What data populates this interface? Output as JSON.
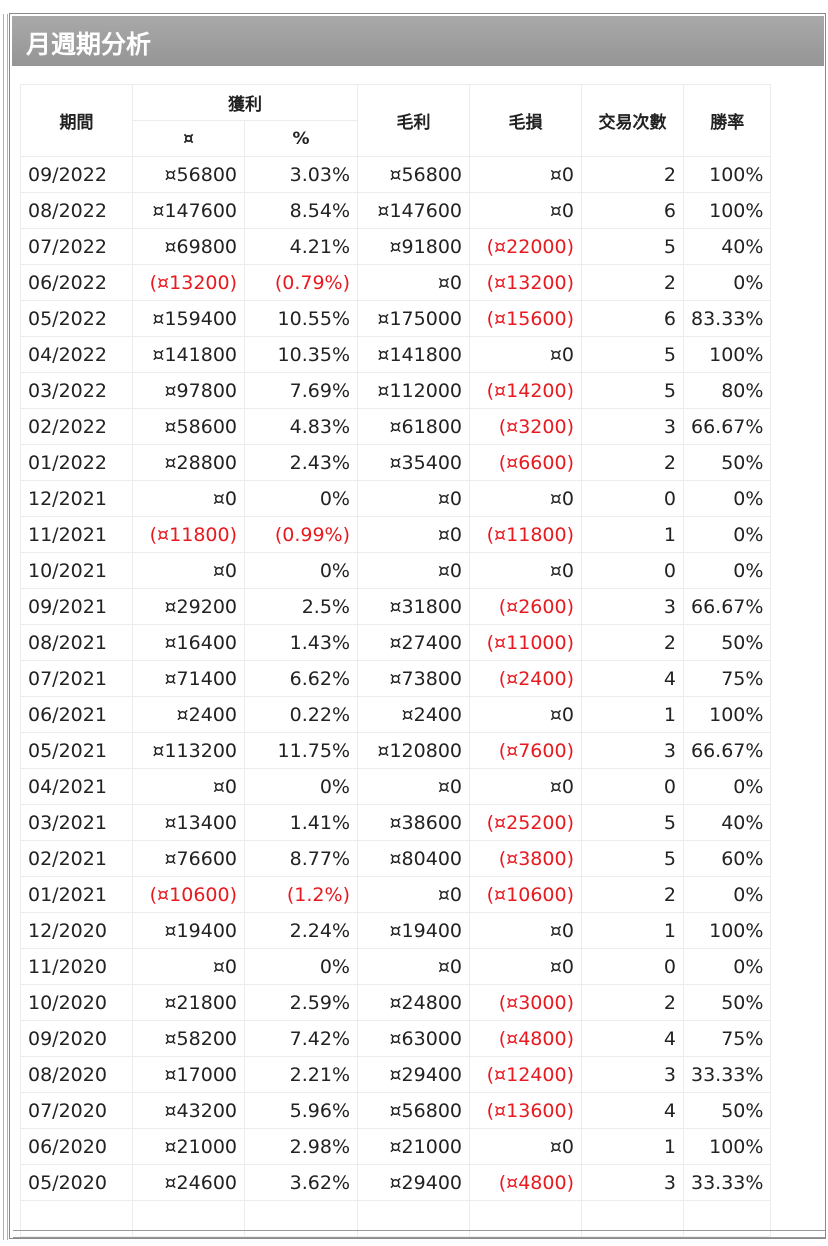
{
  "title": "月週期分析",
  "headers": {
    "period": "期間",
    "profit_group": "獲利",
    "profit_amount": "¤",
    "profit_pct": "%",
    "gross_profit": "毛利",
    "gross_loss": "毛損",
    "trades": "交易次數",
    "win_rate": "勝率"
  },
  "rows": [
    {
      "period": "09/2022",
      "profit": "¤56800",
      "pct": "3.03%",
      "gross": "¤56800",
      "loss": "¤0",
      "trades": "2",
      "win": "100%",
      "neg": false
    },
    {
      "period": "08/2022",
      "profit": "¤147600",
      "pct": "8.54%",
      "gross": "¤147600",
      "loss": "¤0",
      "trades": "6",
      "win": "100%",
      "neg": false
    },
    {
      "period": "07/2022",
      "profit": "¤69800",
      "pct": "4.21%",
      "gross": "¤91800",
      "loss": "(¤22000)",
      "trades": "5",
      "win": "40%",
      "neg": false
    },
    {
      "period": "06/2022",
      "profit": "(¤13200)",
      "pct": "(0.79%)",
      "gross": "¤0",
      "loss": "(¤13200)",
      "trades": "2",
      "win": "0%",
      "neg": true
    },
    {
      "period": "05/2022",
      "profit": "¤159400",
      "pct": "10.55%",
      "gross": "¤175000",
      "loss": "(¤15600)",
      "trades": "6",
      "win": "83.33%",
      "neg": false
    },
    {
      "period": "04/2022",
      "profit": "¤141800",
      "pct": "10.35%",
      "gross": "¤141800",
      "loss": "¤0",
      "trades": "5",
      "win": "100%",
      "neg": false
    },
    {
      "period": "03/2022",
      "profit": "¤97800",
      "pct": "7.69%",
      "gross": "¤112000",
      "loss": "(¤14200)",
      "trades": "5",
      "win": "80%",
      "neg": false
    },
    {
      "period": "02/2022",
      "profit": "¤58600",
      "pct": "4.83%",
      "gross": "¤61800",
      "loss": "(¤3200)",
      "trades": "3",
      "win": "66.67%",
      "neg": false
    },
    {
      "period": "01/2022",
      "profit": "¤28800",
      "pct": "2.43%",
      "gross": "¤35400",
      "loss": "(¤6600)",
      "trades": "2",
      "win": "50%",
      "neg": false
    },
    {
      "period": "12/2021",
      "profit": "¤0",
      "pct": "0%",
      "gross": "¤0",
      "loss": "¤0",
      "trades": "0",
      "win": "0%",
      "neg": false
    },
    {
      "period": "11/2021",
      "profit": "(¤11800)",
      "pct": "(0.99%)",
      "gross": "¤0",
      "loss": "(¤11800)",
      "trades": "1",
      "win": "0%",
      "neg": true
    },
    {
      "period": "10/2021",
      "profit": "¤0",
      "pct": "0%",
      "gross": "¤0",
      "loss": "¤0",
      "trades": "0",
      "win": "0%",
      "neg": false
    },
    {
      "period": "09/2021",
      "profit": "¤29200",
      "pct": "2.5%",
      "gross": "¤31800",
      "loss": "(¤2600)",
      "trades": "3",
      "win": "66.67%",
      "neg": false
    },
    {
      "period": "08/2021",
      "profit": "¤16400",
      "pct": "1.43%",
      "gross": "¤27400",
      "loss": "(¤11000)",
      "trades": "2",
      "win": "50%",
      "neg": false
    },
    {
      "period": "07/2021",
      "profit": "¤71400",
      "pct": "6.62%",
      "gross": "¤73800",
      "loss": "(¤2400)",
      "trades": "4",
      "win": "75%",
      "neg": false
    },
    {
      "period": "06/2021",
      "profit": "¤2400",
      "pct": "0.22%",
      "gross": "¤2400",
      "loss": "¤0",
      "trades": "1",
      "win": "100%",
      "neg": false
    },
    {
      "period": "05/2021",
      "profit": "¤113200",
      "pct": "11.75%",
      "gross": "¤120800",
      "loss": "(¤7600)",
      "trades": "3",
      "win": "66.67%",
      "neg": false
    },
    {
      "period": "04/2021",
      "profit": "¤0",
      "pct": "0%",
      "gross": "¤0",
      "loss": "¤0",
      "trades": "0",
      "win": "0%",
      "neg": false
    },
    {
      "period": "03/2021",
      "profit": "¤13400",
      "pct": "1.41%",
      "gross": "¤38600",
      "loss": "(¤25200)",
      "trades": "5",
      "win": "40%",
      "neg": false
    },
    {
      "period": "02/2021",
      "profit": "¤76600",
      "pct": "8.77%",
      "gross": "¤80400",
      "loss": "(¤3800)",
      "trades": "5",
      "win": "60%",
      "neg": false
    },
    {
      "period": "01/2021",
      "profit": "(¤10600)",
      "pct": "(1.2%)",
      "gross": "¤0",
      "loss": "(¤10600)",
      "trades": "2",
      "win": "0%",
      "neg": true
    },
    {
      "period": "12/2020",
      "profit": "¤19400",
      "pct": "2.24%",
      "gross": "¤19400",
      "loss": "¤0",
      "trades": "1",
      "win": "100%",
      "neg": false
    },
    {
      "period": "11/2020",
      "profit": "¤0",
      "pct": "0%",
      "gross": "¤0",
      "loss": "¤0",
      "trades": "0",
      "win": "0%",
      "neg": false
    },
    {
      "period": "10/2020",
      "profit": "¤21800",
      "pct": "2.59%",
      "gross": "¤24800",
      "loss": "(¤3000)",
      "trades": "2",
      "win": "50%",
      "neg": false
    },
    {
      "period": "09/2020",
      "profit": "¤58200",
      "pct": "7.42%",
      "gross": "¤63000",
      "loss": "(¤4800)",
      "trades": "4",
      "win": "75%",
      "neg": false
    },
    {
      "period": "08/2020",
      "profit": "¤17000",
      "pct": "2.21%",
      "gross": "¤29400",
      "loss": "(¤12400)",
      "trades": "3",
      "win": "33.33%",
      "neg": false
    },
    {
      "period": "07/2020",
      "profit": "¤43200",
      "pct": "5.96%",
      "gross": "¤56800",
      "loss": "(¤13600)",
      "trades": "4",
      "win": "50%",
      "neg": false
    },
    {
      "period": "06/2020",
      "profit": "¤21000",
      "pct": "2.98%",
      "gross": "¤21000",
      "loss": "¤0",
      "trades": "1",
      "win": "100%",
      "neg": false
    },
    {
      "period": "05/2020",
      "profit": "¤24600",
      "pct": "3.62%",
      "gross": "¤29400",
      "loss": "(¤4800)",
      "trades": "3",
      "win": "33.33%",
      "neg": false
    }
  ],
  "colors": {
    "title_bar": "#a0a0a0",
    "title_text": "#ffffff",
    "negative": "#e8191f",
    "text": "#222222",
    "grid": "#ececec"
  }
}
